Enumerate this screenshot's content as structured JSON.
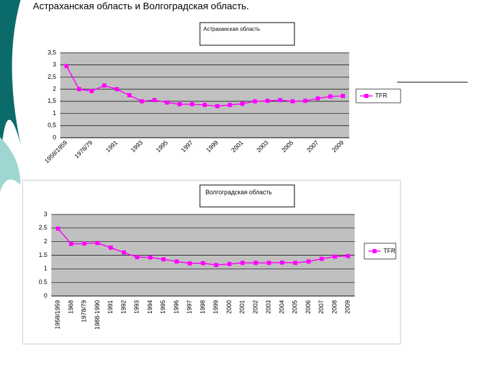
{
  "title": "Астраханская область и Волгоградская область.",
  "chart_data": [
    {
      "type": "line",
      "title": "Астраханская область",
      "categories": [
        "1958/1959",
        null,
        "1978/79",
        null,
        "1991",
        null,
        "1993",
        null,
        "1995",
        null,
        "1997",
        null,
        "1999",
        null,
        "2001",
        null,
        "2003",
        null,
        "2005",
        null,
        "2007",
        null,
        "2009"
      ],
      "series": [
        {
          "name": "TFR",
          "color": "#ff00ff",
          "values": [
            2.95,
            2.0,
            1.92,
            2.15,
            2.0,
            1.75,
            1.5,
            1.55,
            1.45,
            1.38,
            1.38,
            1.35,
            1.3,
            1.35,
            1.4,
            1.5,
            1.52,
            1.55,
            1.5,
            1.52,
            1.62,
            1.7,
            1.72
          ]
        }
      ],
      "ylim": [
        0,
        3.5
      ],
      "yticks": [
        0,
        {
          "value": 0.5,
          "label": "0,5"
        },
        1,
        {
          "value": 1.5,
          "label": "1,5"
        },
        2,
        {
          "value": 2.5,
          "label": "2,5"
        },
        3,
        {
          "value": 3.5,
          "label": "3,5"
        }
      ],
      "grid": true,
      "legend": "right"
    },
    {
      "type": "line",
      "title": "Волгоградская область",
      "categories": [
        "1958/1959",
        "1968",
        "1978/79",
        "1988-1990",
        "1991",
        "1992",
        "1993",
        "1994",
        "1995",
        "1996",
        "1997",
        "1998",
        "1999",
        "2000",
        "2001",
        "2002",
        "2003",
        "2004",
        "2005",
        "2006",
        "2007",
        "2008",
        "2009"
      ],
      "series": [
        {
          "name": "TFR",
          "color": "#ff00ff",
          "values": [
            2.48,
            1.92,
            1.93,
            1.95,
            1.78,
            1.6,
            1.43,
            1.42,
            1.35,
            1.27,
            1.2,
            1.21,
            1.14,
            1.18,
            1.22,
            1.22,
            1.22,
            1.23,
            1.22,
            1.27,
            1.37,
            1.45,
            1.47
          ]
        }
      ],
      "ylim": [
        0,
        3
      ],
      "yticks": [
        0,
        0.5,
        1,
        1.5,
        2,
        2.5,
        3
      ],
      "grid": true,
      "legend": "right"
    }
  ]
}
